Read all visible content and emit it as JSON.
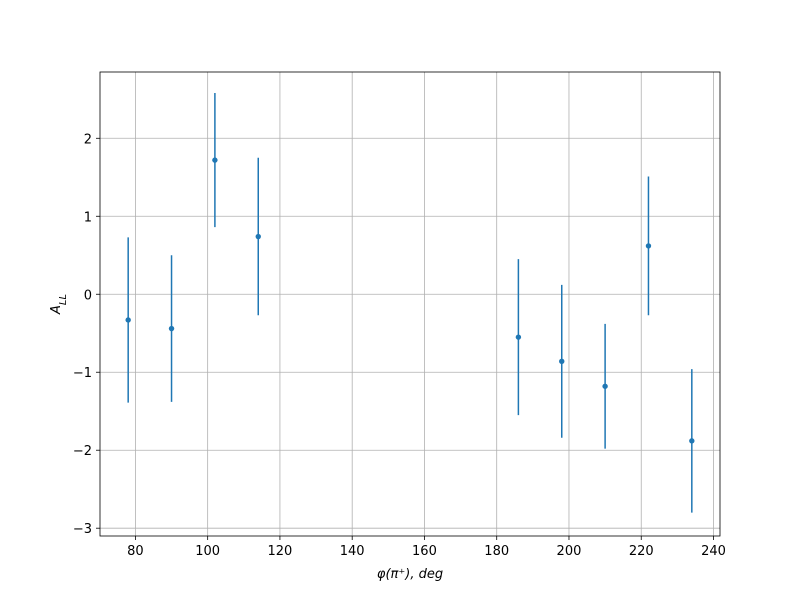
{
  "chart_data": {
    "type": "errorbar",
    "x_label": "φ(π⁺), deg",
    "y_label": "A_LL",
    "x": [
      78,
      90,
      102,
      114,
      186,
      198,
      210,
      222,
      234
    ],
    "values": [
      -0.33,
      -0.44,
      1.72,
      0.74,
      -0.55,
      -0.86,
      -1.18,
      0.62,
      -1.88
    ],
    "errors": [
      1.06,
      0.94,
      0.86,
      1.01,
      1.0,
      0.98,
      0.8,
      0.89,
      0.92
    ],
    "color": "#1f77b4",
    "xlim": [
      70.2,
      241.8
    ],
    "xticks": [
      80,
      100,
      120,
      140,
      160,
      180,
      200,
      220,
      240
    ],
    "ylim": [
      -3.1,
      2.85
    ],
    "yticks": [
      {
        "value": -3,
        "label": "−3"
      },
      {
        "value": -2,
        "label": "−2"
      },
      {
        "value": -1,
        "label": "−1"
      },
      0,
      1,
      2
    ],
    "grid": true
  }
}
